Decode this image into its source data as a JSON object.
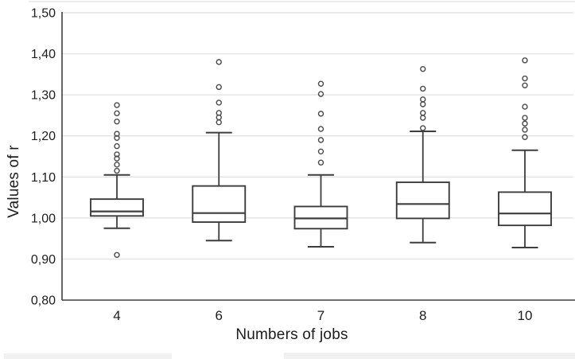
{
  "chart_data": {
    "type": "boxplot",
    "title": "",
    "xlabel": "Numbers of jobs",
    "ylabel": "Values of r",
    "decimal_separator": ",",
    "grid": "horizontal-only",
    "legend": "none",
    "categories": [
      "4",
      "6",
      "7",
      "8",
      "10"
    ],
    "y_axis": {
      "min": 0.8,
      "max": 1.5,
      "step": 0.1,
      "ticks": [
        {
          "value": 1.5,
          "label": "1,50"
        },
        {
          "value": 1.4,
          "label": "1,40"
        },
        {
          "value": 1.3,
          "label": "1,30"
        },
        {
          "value": 1.2,
          "label": "1,20"
        },
        {
          "value": 1.1,
          "label": "1,10"
        },
        {
          "value": 1.0,
          "label": "1,00"
        },
        {
          "value": 0.9,
          "label": "0,90"
        },
        {
          "value": 0.8,
          "label": "0,80"
        }
      ]
    },
    "series": [
      {
        "category": "4",
        "whisker_low": 0.975,
        "q1": 1.005,
        "median": 1.016,
        "q3": 1.046,
        "whisker_high": 1.105,
        "outliers": [
          0.91,
          1.115,
          1.13,
          1.145,
          1.155,
          1.175,
          1.195,
          1.205,
          1.235,
          1.255,
          1.275
        ]
      },
      {
        "category": "6",
        "whisker_low": 0.945,
        "q1": 0.99,
        "median": 1.012,
        "q3": 1.078,
        "whisker_high": 1.208,
        "outliers": [
          1.233,
          1.245,
          1.256,
          1.281,
          1.319,
          1.38
        ]
      },
      {
        "category": "7",
        "whisker_low": 0.93,
        "q1": 0.974,
        "median": 0.999,
        "q3": 1.028,
        "whisker_high": 1.105,
        "outliers": [
          1.135,
          1.162,
          1.19,
          1.217,
          1.254,
          1.302,
          1.327
        ]
      },
      {
        "category": "8",
        "whisker_low": 0.94,
        "q1": 0.999,
        "median": 1.034,
        "q3": 1.087,
        "whisker_high": 1.211,
        "outliers": [
          1.219,
          1.244,
          1.256,
          1.277,
          1.289,
          1.315,
          1.363
        ]
      },
      {
        "category": "10",
        "whisker_low": 0.928,
        "q1": 0.982,
        "median": 1.011,
        "q3": 1.063,
        "whisker_high": 1.165,
        "outliers": [
          1.197,
          1.215,
          1.23,
          1.244,
          1.271,
          1.323,
          1.34,
          1.384
        ]
      }
    ],
    "colors": {
      "background": "#ffffff",
      "box_fill": "#ffffff",
      "box_stroke": "#3d3d3d",
      "median_stroke": "#3d3d3d",
      "whisker_stroke": "#3d3d3d",
      "outlier_stroke": "#4a4a4a",
      "gridline": "#e2e2e2",
      "axis_line": "#3f3f3f",
      "text": "#1c1c1c"
    }
  }
}
